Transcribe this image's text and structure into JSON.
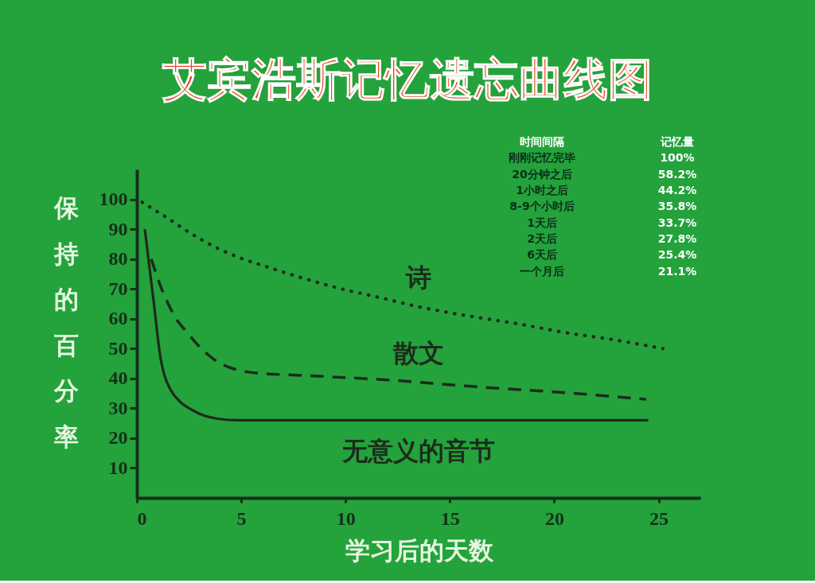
{
  "chart_data": [
    {
      "type": "line",
      "title": "艾宾浩斯记忆遗忘曲线图",
      "xlabel": "学习后的天数",
      "ylabel": "保持的百分率",
      "xlim": [
        0,
        27
      ],
      "ylim": [
        0,
        110
      ],
      "xticks": [
        0,
        5,
        10,
        15,
        20,
        25
      ],
      "yticks": [
        10,
        20,
        30,
        40,
        50,
        60,
        70,
        80,
        90,
        100
      ],
      "grid": false,
      "series": [
        {
          "name": "诗",
          "color": "#1c2b1c",
          "line_style": "dotted",
          "x": [
            0.25,
            1.4,
            2.6,
            3.9,
            4.9,
            6.4,
            8,
            9.8,
            11.7,
            13.5,
            15,
            16.7,
            18.5,
            20.4,
            22.8,
            25.2
          ],
          "values": [
            99,
            94,
            88.5,
            83.5,
            80.5,
            77,
            73.5,
            70,
            67,
            64,
            62,
            60,
            58,
            55.5,
            53,
            50
          ]
        },
        {
          "name": "散文",
          "color": "#1c2b1c",
          "line_style": "dashed",
          "x": [
            0.69,
            1.13,
            1.5,
            1.88,
            2.4,
            2.88,
            3.4,
            3.88,
            4.4,
            4.9,
            5.8,
            8,
            12,
            16.7,
            20,
            24.4
          ],
          "values": [
            80,
            71,
            65,
            60,
            55.5,
            51.5,
            48,
            45.5,
            43.8,
            42.7,
            41.8,
            41,
            39.5,
            37,
            35.5,
            33
          ]
        },
        {
          "name": "无意义的音节",
          "color": "#1c2b1c",
          "line_style": "solid",
          "x": [
            0.38,
            0.8,
            1.13,
            1.3,
            1.63,
            2.1,
            2.63,
            3.25,
            3.88,
            4.9,
            10,
            15,
            20,
            24.5
          ],
          "values": [
            90,
            66,
            47,
            41.5,
            36,
            32,
            29.5,
            27.5,
            26.5,
            26,
            26,
            26,
            26,
            26
          ]
        }
      ]
    },
    {
      "type": "other",
      "xlabel": "时间间隔",
      "ylabel": "记忆量",
      "categories": [
        "刚刚记忆完毕",
        "20分钟之后",
        "1小时之后",
        "8-9个小时后",
        "1天后",
        "2天后",
        "6天后",
        "一个月后"
      ],
      "value_labels": [
        "100%",
        "58.2%",
        "44.2%",
        "35.8%",
        "33.7%",
        "27.8%",
        "25.4%",
        "21.1%"
      ]
    }
  ]
}
